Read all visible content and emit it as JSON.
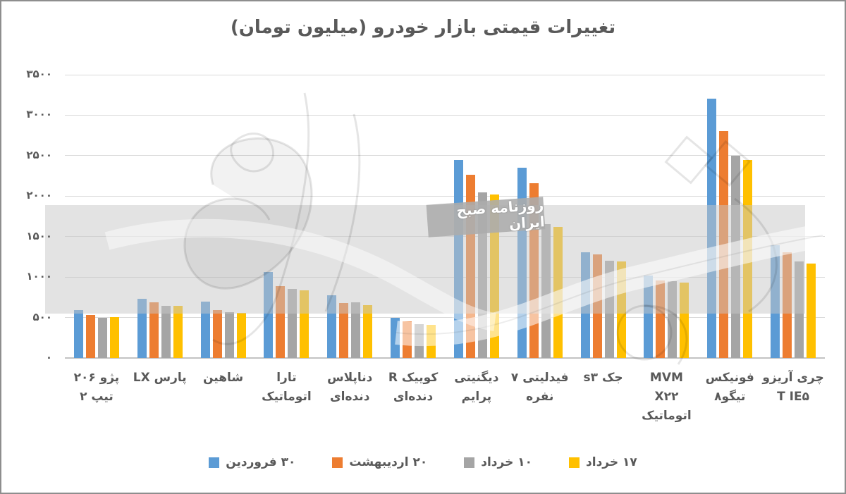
{
  "chart_data": {
    "type": "bar",
    "title": "تغییرات قیمتی بازار خودرو (میلیون تومان)",
    "categories": [
      "پژو ۲۰۶ تیپ ۲",
      "پارس LX",
      "شاهین",
      "تارا اتوماتیک",
      "دناپلاس دنده‌ای",
      "کوییک R دنده‌ای",
      "دیگنیتی پرایم",
      "فیدلیتی ۷ نفره",
      "جک s۳",
      "MVM X۲۲ اتوماتیک",
      "فونیکس تیگو۸",
      "چری آریزو T IE۵"
    ],
    "categories_display": [
      "پژو ۲۰۶\nتیپ ۲",
      "پارس LX",
      "شاهین",
      "تارا\nاتوماتیک",
      "دناپلاس\nدنده‌ای",
      "کوییک R\nدنده‌ای",
      "دیگنیتی\nپرایم",
      "فیدلیتی ۷\nنفره",
      "جک s۳",
      "MVM\nX۲۲\nاتوماتیک",
      "فونیکس\nتیگو۸",
      "چری آریزو\nT IE۵"
    ],
    "series": [
      {
        "name": "۳۰ فروردین",
        "color": "#5B9BD5",
        "values": [
          590,
          735,
          700,
          1060,
          775,
          495,
          2450,
          2350,
          1310,
          1020,
          3200,
          1390
        ]
      },
      {
        "name": "۲۰ اردیبهشت",
        "color": "#ED7D31",
        "values": [
          530,
          685,
          590,
          885,
          680,
          455,
          2260,
          2160,
          1280,
          960,
          2800,
          1310
        ]
      },
      {
        "name": "۱۰ خرداد",
        "color": "#A5A5A5",
        "values": [
          500,
          640,
          570,
          850,
          690,
          420,
          2050,
          1650,
          1200,
          945,
          2500,
          1190
        ]
      },
      {
        "name": "۱۷ خرداد",
        "color": "#FFC000",
        "values": [
          505,
          645,
          560,
          840,
          655,
          410,
          2020,
          1620,
          1190,
          930,
          2450,
          1170
        ]
      }
    ],
    "xlabel": "",
    "ylabel": "",
    "ylim": [
      0,
      3500
    ],
    "yticks": [
      3500,
      3000,
      2500,
      2000,
      1500,
      1000,
      500,
      0
    ],
    "ytick_labels": [
      "۳۵۰۰",
      "۳۰۰۰",
      "۲۵۰۰",
      "۲۰۰۰",
      "۱۵۰۰",
      "۱۰۰۰",
      "۵۰۰",
      "۰"
    ],
    "grid": true,
    "legend_position": "bottom"
  },
  "watermark": {
    "stamp_text": "روزنامه صبح ایران"
  }
}
